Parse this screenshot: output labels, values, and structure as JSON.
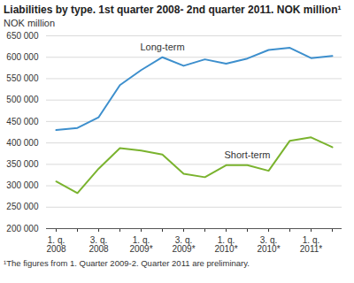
{
  "chart_data": {
    "type": "line",
    "title": "Liabilities by type. 1st quarter 2008- 2nd quarter 2011. NOK million¹",
    "y_label": "NOK million",
    "footnote": "¹The figures from 1. Quarter 2009-2. Quarter 2011 are preliminary.",
    "categories": [
      "1. q.\n2008",
      null,
      "3. q.\n2008",
      null,
      "1. q.\n2009*",
      null,
      "3. q.\n2009*",
      null,
      "1. q.\n2010*",
      null,
      "3. q.\n2010*",
      null,
      "1. q.\n2011*",
      null
    ],
    "series": [
      {
        "name": "Long-term",
        "color": "#3d8fcd",
        "values": [
          430000,
          435000,
          460000,
          535000,
          570000,
          600000,
          580000,
          595000,
          585000,
          597000,
          617000,
          622000,
          598000,
          603000
        ]
      },
      {
        "name": "Short-term",
        "color": "#7ab32e",
        "values": [
          310000,
          283000,
          340000,
          388000,
          382000,
          373000,
          328000,
          320000,
          348000,
          348000,
          335000,
          405000,
          413000,
          390000
        ]
      }
    ],
    "ylim": [
      200000,
      650000
    ],
    "yticks": [
      {
        "value": 200000,
        "label": "200 000"
      },
      {
        "value": 250000,
        "label": "250 000"
      },
      {
        "value": 300000,
        "label": "300 000"
      },
      {
        "value": 350000,
        "label": "350 000"
      },
      {
        "value": 400000,
        "label": "400 000"
      },
      {
        "value": 450000,
        "label": "450 000"
      },
      {
        "value": 500000,
        "label": "500 000"
      },
      {
        "value": 550000,
        "label": "550 000"
      },
      {
        "value": 600000,
        "label": "600 000"
      },
      {
        "value": 650000,
        "label": "650 000"
      }
    ],
    "grid": true
  }
}
